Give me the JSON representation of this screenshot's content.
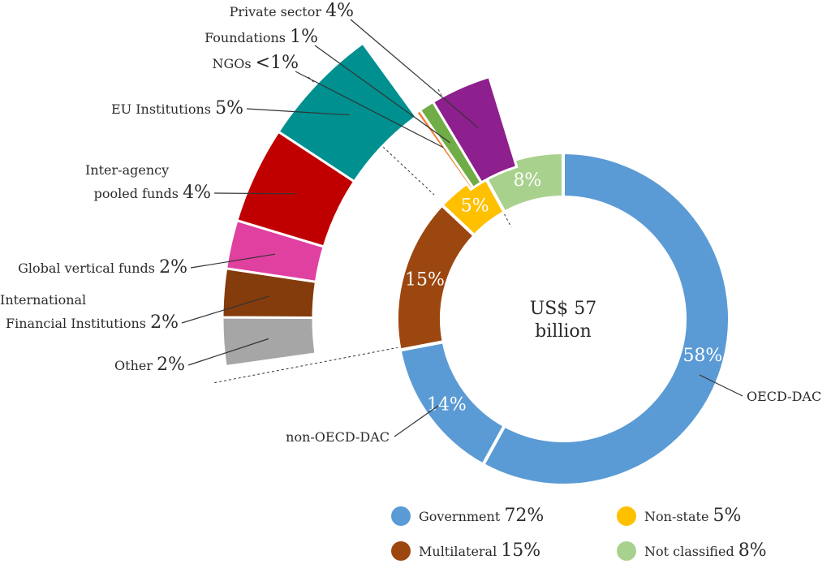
{
  "chart_data": {
    "type": "pie",
    "center_text": [
      "US$ 57",
      "billion"
    ],
    "donut": [
      {
        "name": "Government",
        "value": 58,
        "label": "58%",
        "color": "#5b9bd5",
        "group": "Government",
        "callout": "OECD-DAC"
      },
      {
        "name": "Government",
        "value": 14,
        "label": "14%",
        "color": "#5b9bd5",
        "group": "Government",
        "callout": "non-OECD-DAC"
      },
      {
        "name": "Multilateral",
        "value": 15,
        "label": "15%",
        "color": "#9c4710",
        "group": "Multilateral"
      },
      {
        "name": "Non-state",
        "value": 5,
        "label": "5%",
        "color": "#ffc000",
        "group": "Non-state"
      },
      {
        "name": "Not classified",
        "value": 8,
        "label": "8%",
        "color": "#a9d18e",
        "group": "Not classified"
      }
    ],
    "multilateral_breakdown": [
      {
        "name": "Other",
        "value": 2,
        "label": "2%",
        "color": "#a6a6a6"
      },
      {
        "name": "International Financial Institutions",
        "lines": [
          "International",
          "Financial Institutions"
        ],
        "value": 2,
        "label": "2%",
        "color": "#843c0c"
      },
      {
        "name": "Global vertical funds",
        "value": 2,
        "label": "2%",
        "color": "#e040a0"
      },
      {
        "name": "Inter-agency pooled funds",
        "lines": [
          "Inter-agency",
          "pooled funds"
        ],
        "value": 4,
        "label": "4%",
        "color": "#c00000"
      },
      {
        "name": "EU Institutions",
        "value": 5,
        "label": "5%",
        "color": "#009090"
      }
    ],
    "nonstate_breakdown": [
      {
        "name": "NGOs",
        "value": 0.3,
        "label": "<1%",
        "color": "#ed7d31"
      },
      {
        "name": "Foundations",
        "value": 1,
        "label": "1%",
        "color": "#70ad47"
      },
      {
        "name": "Private sector",
        "value": 4,
        "label": "4%",
        "color": "#8e1f8e"
      }
    ],
    "legend": [
      {
        "name": "Government",
        "value": "72%",
        "color": "#5b9bd5"
      },
      {
        "name": "Non-state",
        "value": "5%",
        "color": "#ffc000"
      },
      {
        "name": "Multilateral",
        "value": "15%",
        "color": "#9c4710"
      },
      {
        "name": "Not classified",
        "value": "8%",
        "color": "#a9d18e"
      }
    ]
  }
}
